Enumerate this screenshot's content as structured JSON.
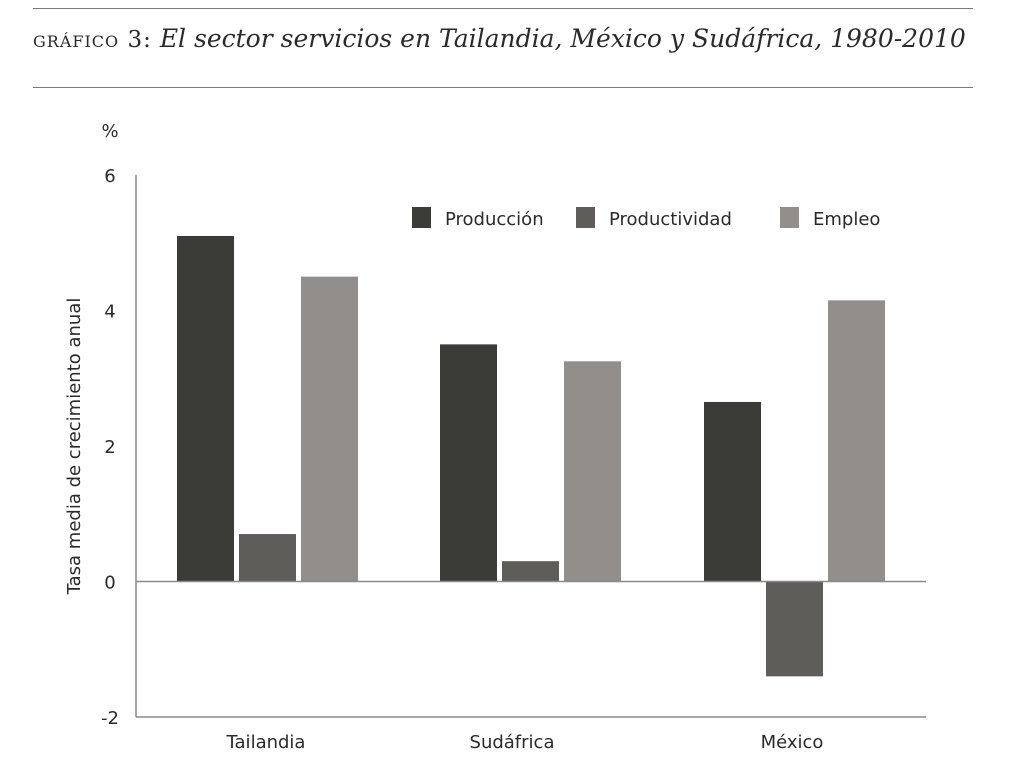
{
  "title": {
    "label": "gráfico 3:",
    "text": "El sector servicios en Tailandia, México y Sudáfrica, 1980-2010"
  },
  "chart_data": {
    "type": "bar",
    "title": "gráfico 3: El sector servicios en Tailandia, México y Sudáfrica, 1980-2010",
    "unit_label": "%",
    "xlabel": "",
    "ylabel": "Tasa media de crecimiento anual",
    "ylim": [
      -2,
      6
    ],
    "yticks": [
      "6",
      "4",
      "2",
      "0",
      "-2"
    ],
    "ytick_values": [
      6,
      4,
      2,
      0,
      -2
    ],
    "grid": false,
    "legend_position": "top-right",
    "categories": [
      "Tailandia",
      "Sudáfrica",
      "México"
    ],
    "series": [
      {
        "name": "Producción",
        "color": "#3b3b38",
        "values": [
          5.1,
          3.5,
          2.65
        ]
      },
      {
        "name": "Productividad",
        "color": "#5e5d5a",
        "values": [
          0.7,
          0.3,
          -1.4
        ]
      },
      {
        "name": "Empleo",
        "color": "#918e8b",
        "values": [
          4.5,
          3.25,
          4.15
        ]
      }
    ]
  }
}
